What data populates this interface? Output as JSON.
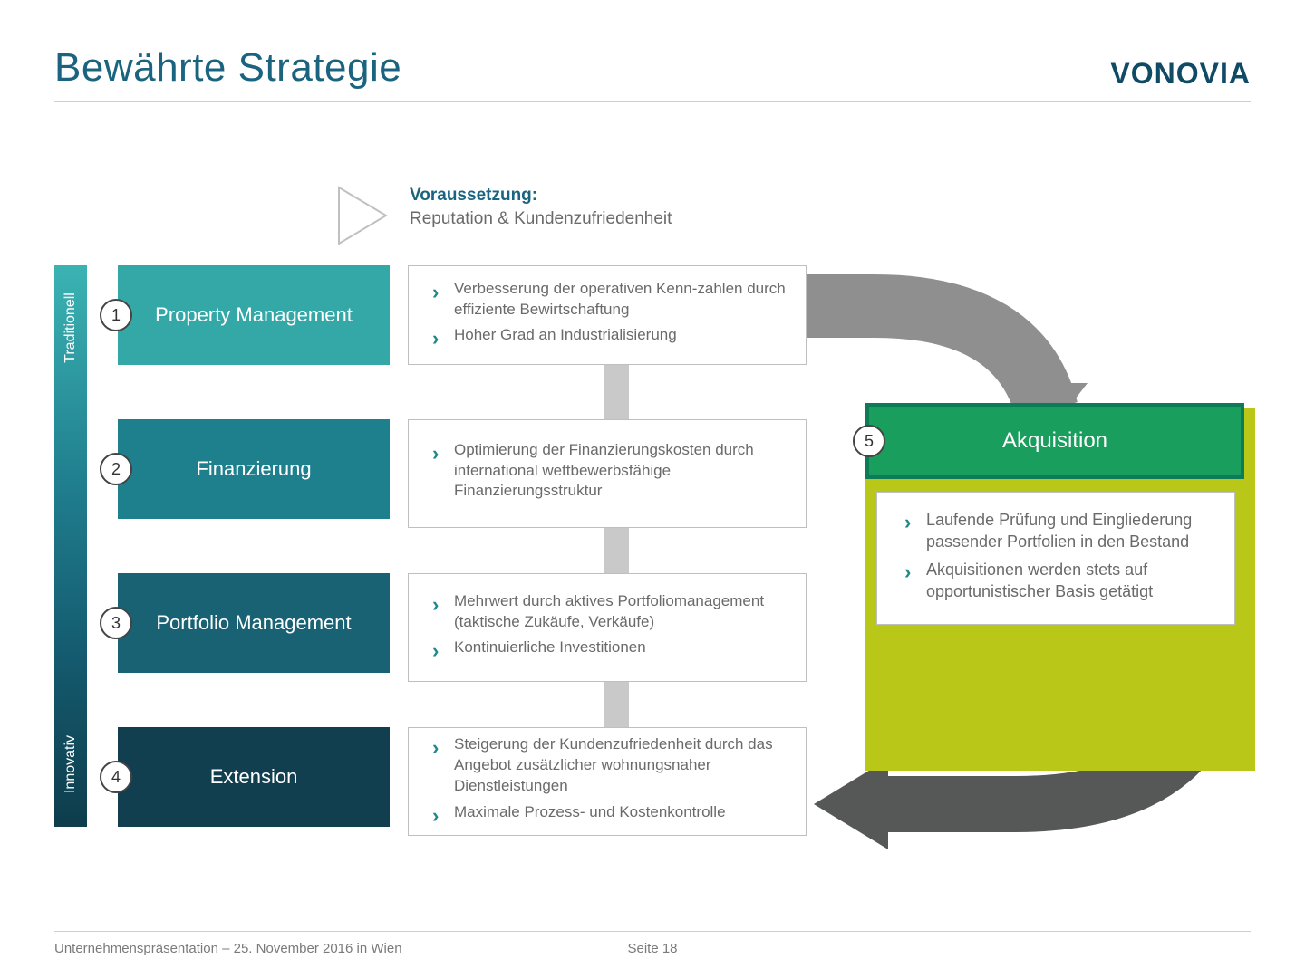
{
  "title": "Bewährte Strategie",
  "logo_text": "VONOVIA",
  "colors": {
    "title": "#1a6480",
    "logo": "#0f4b64",
    "prereq_label": "#1a6480",
    "prereq_text": "#6a6a6a",
    "chevron": "#1a8a8a",
    "arrow_dark": "#565757",
    "arrow_mid": "#8f8f8f",
    "arrow_light": "#c9c9c9",
    "play_triangle": "#c0c0c0",
    "box1": "#34a7a7",
    "box2": "#1e7f8d",
    "box3": "#186274",
    "box4": "#123f4f",
    "acq_bg": "#b9c718",
    "acq_head_fill": "#1a9e5e",
    "acq_head_border": "#0d7a58",
    "acq_text": "#ffffff"
  },
  "vbar": {
    "top_label": "Traditionell",
    "bottom_label": "Innovativ"
  },
  "prereq": {
    "label": "Voraussetzung:",
    "text": "Reputation & Kundenzufriedenheit"
  },
  "rows": [
    {
      "num": "1",
      "label": "Property Management",
      "items": [
        "Verbesserung der operativen Kenn-zahlen durch effiziente Bewirtschaftung",
        "Hoher Grad an Industrialisierung"
      ]
    },
    {
      "num": "2",
      "label": "Finanzierung",
      "items": [
        "Optimierung der Finanzierungskosten durch international wettbewerbsfähige Finanzierungsstruktur"
      ]
    },
    {
      "num": "3",
      "label": "Portfolio Management",
      "items": [
        "Mehrwert durch aktives Portfoliomanagement (taktische Zukäufe, Verkäufe)",
        "Kontinuierliche Investitionen"
      ]
    },
    {
      "num": "4",
      "label": "Extension",
      "items": [
        "Steigerung der Kundenzufriedenheit durch das Angebot zusätzlicher wohnungsnaher Dienstleistungen",
        "Maximale Prozess- und Kostenkontrolle"
      ]
    }
  ],
  "row_layout": {
    "tops": [
      70,
      240,
      410,
      580
    ],
    "desc_heights": [
      110,
      120,
      120,
      120
    ]
  },
  "acq": {
    "num": "5",
    "label": "Akquisition",
    "items": [
      "Laufende Prüfung und Eingliederung passender Portfolien in den Bestand",
      "Akquisitionen werden stets auf opportunistischer Basis getätigt"
    ]
  },
  "footer": {
    "left": "Unternehmenspräsentation – 25. November 2016 in Wien",
    "center": "Seite 18"
  }
}
